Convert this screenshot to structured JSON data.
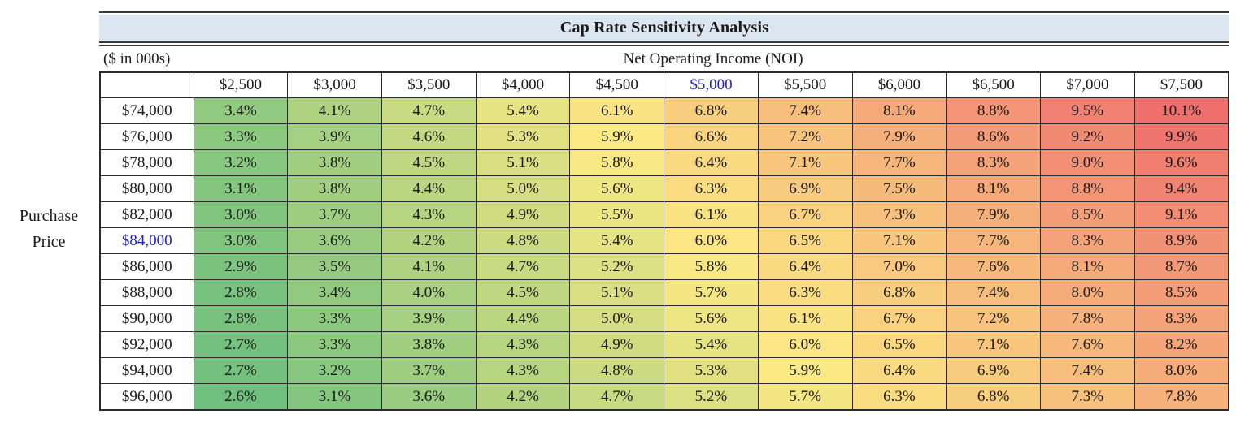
{
  "colors": {
    "title_bar_bg": "#dce6f1",
    "highlight_text": "#2222cc",
    "grid_border": "#2b2b2b",
    "text": "#1a1a1a"
  },
  "chart_data": {
    "type": "heatmap",
    "title": "Cap Rate Sensitivity Analysis",
    "units_note": "($ in 000s)",
    "x_axis_label": "Net Operating Income (NOI)",
    "y_axis_label": "Purchase Price",
    "y_axis_label_lines": [
      "Purchase",
      "Price"
    ],
    "columns": [
      "$2,500",
      "$3,000",
      "$3,500",
      "$4,000",
      "$4,500",
      "$5,000",
      "$5,500",
      "$6,000",
      "$6,500",
      "$7,000",
      "$7,500"
    ],
    "highlighted_column": "$5,000",
    "highlighted_row": "$84,000",
    "rows": [
      {
        "label": "$74,000",
        "values": [
          "3.4%",
          "4.1%",
          "4.7%",
          "5.4%",
          "6.1%",
          "6.8%",
          "7.4%",
          "8.1%",
          "8.8%",
          "9.5%",
          "10.1%"
        ]
      },
      {
        "label": "$76,000",
        "values": [
          "3.3%",
          "3.9%",
          "4.6%",
          "5.3%",
          "5.9%",
          "6.6%",
          "7.2%",
          "7.9%",
          "8.6%",
          "9.2%",
          "9.9%"
        ]
      },
      {
        "label": "$78,000",
        "values": [
          "3.2%",
          "3.8%",
          "4.5%",
          "5.1%",
          "5.8%",
          "6.4%",
          "7.1%",
          "7.7%",
          "8.3%",
          "9.0%",
          "9.6%"
        ]
      },
      {
        "label": "$80,000",
        "values": [
          "3.1%",
          "3.8%",
          "4.4%",
          "5.0%",
          "5.6%",
          "6.3%",
          "6.9%",
          "7.5%",
          "8.1%",
          "8.8%",
          "9.4%"
        ]
      },
      {
        "label": "$82,000",
        "values": [
          "3.0%",
          "3.7%",
          "4.3%",
          "4.9%",
          "5.5%",
          "6.1%",
          "6.7%",
          "7.3%",
          "7.9%",
          "8.5%",
          "9.1%"
        ]
      },
      {
        "label": "$84,000",
        "values": [
          "3.0%",
          "3.6%",
          "4.2%",
          "4.8%",
          "5.4%",
          "6.0%",
          "6.5%",
          "7.1%",
          "7.7%",
          "8.3%",
          "8.9%"
        ]
      },
      {
        "label": "$86,000",
        "values": [
          "2.9%",
          "3.5%",
          "4.1%",
          "4.7%",
          "5.2%",
          "5.8%",
          "6.4%",
          "7.0%",
          "7.6%",
          "8.1%",
          "8.7%"
        ]
      },
      {
        "label": "$88,000",
        "values": [
          "2.8%",
          "3.4%",
          "4.0%",
          "4.5%",
          "5.1%",
          "5.7%",
          "6.3%",
          "6.8%",
          "7.4%",
          "8.0%",
          "8.5%"
        ]
      },
      {
        "label": "$90,000",
        "values": [
          "2.8%",
          "3.3%",
          "3.9%",
          "4.4%",
          "5.0%",
          "5.6%",
          "6.1%",
          "6.7%",
          "7.2%",
          "7.8%",
          "8.3%"
        ]
      },
      {
        "label": "$92,000",
        "values": [
          "2.7%",
          "3.3%",
          "3.8%",
          "4.3%",
          "4.9%",
          "5.4%",
          "6.0%",
          "6.5%",
          "7.1%",
          "7.6%",
          "8.2%"
        ]
      },
      {
        "label": "$94,000",
        "values": [
          "2.7%",
          "3.2%",
          "3.7%",
          "4.3%",
          "4.8%",
          "5.3%",
          "5.9%",
          "6.4%",
          "6.9%",
          "7.4%",
          "8.0%"
        ]
      },
      {
        "label": "$96,000",
        "values": [
          "2.6%",
          "3.1%",
          "3.6%",
          "4.2%",
          "4.7%",
          "5.2%",
          "5.7%",
          "6.3%",
          "6.8%",
          "7.3%",
          "7.8%"
        ]
      }
    ],
    "color_scale": {
      "min_value": 2.6,
      "mid_value": 5.9,
      "max_value": 10.1,
      "min_color": "#6fbf7f",
      "mid_color": "#fbe983",
      "max_color": "#ef6f6f"
    }
  }
}
